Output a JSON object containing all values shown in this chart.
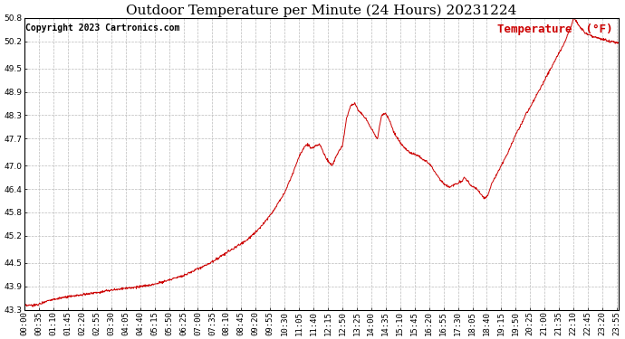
{
  "title": "Outdoor Temperature per Minute (24 Hours) 20231224",
  "copyright_text": "Copyright 2023 Cartronics.com",
  "legend_label": "Temperature  (°F)",
  "line_color": "#cc0000",
  "background_color": "#ffffff",
  "grid_color": "#bbbbbb",
  "grid_style": "--",
  "ylim": [
    43.3,
    50.8
  ],
  "yticks": [
    43.3,
    43.9,
    44.5,
    45.2,
    45.8,
    46.4,
    47.0,
    47.7,
    48.3,
    48.9,
    49.5,
    50.2,
    50.8
  ],
  "title_fontsize": 11,
  "copyright_fontsize": 7,
  "tick_fontsize": 6.5,
  "legend_fontsize": 9,
  "keypoints": [
    [
      0,
      43.4
    ],
    [
      30,
      43.42
    ],
    [
      60,
      43.55
    ],
    [
      90,
      43.6
    ],
    [
      120,
      43.65
    ],
    [
      150,
      43.7
    ],
    [
      180,
      43.75
    ],
    [
      210,
      43.8
    ],
    [
      240,
      43.85
    ],
    [
      270,
      43.88
    ],
    [
      300,
      43.92
    ],
    [
      330,
      44.0
    ],
    [
      360,
      44.1
    ],
    [
      390,
      44.2
    ],
    [
      420,
      44.35
    ],
    [
      450,
      44.5
    ],
    [
      480,
      44.7
    ],
    [
      510,
      44.9
    ],
    [
      540,
      45.1
    ],
    [
      570,
      45.4
    ],
    [
      600,
      45.8
    ],
    [
      630,
      46.3
    ],
    [
      650,
      46.8
    ],
    [
      660,
      47.1
    ],
    [
      670,
      47.35
    ],
    [
      680,
      47.5
    ],
    [
      685,
      47.55
    ],
    [
      695,
      47.45
    ],
    [
      705,
      47.5
    ],
    [
      715,
      47.55
    ],
    [
      720,
      47.45
    ],
    [
      730,
      47.2
    ],
    [
      745,
      47.0
    ],
    [
      760,
      47.35
    ],
    [
      770,
      47.5
    ],
    [
      780,
      48.2
    ],
    [
      790,
      48.55
    ],
    [
      800,
      48.6
    ],
    [
      810,
      48.4
    ],
    [
      820,
      48.3
    ],
    [
      830,
      48.15
    ],
    [
      840,
      47.95
    ],
    [
      855,
      47.7
    ],
    [
      865,
      48.3
    ],
    [
      875,
      48.35
    ],
    [
      885,
      48.15
    ],
    [
      895,
      47.85
    ],
    [
      910,
      47.6
    ],
    [
      925,
      47.4
    ],
    [
      940,
      47.3
    ],
    [
      955,
      47.25
    ],
    [
      965,
      47.15
    ],
    [
      975,
      47.1
    ],
    [
      985,
      47.0
    ],
    [
      990,
      46.9
    ],
    [
      1000,
      46.75
    ],
    [
      1010,
      46.6
    ],
    [
      1020,
      46.5
    ],
    [
      1030,
      46.45
    ],
    [
      1040,
      46.5
    ],
    [
      1050,
      46.55
    ],
    [
      1060,
      46.6
    ],
    [
      1065,
      46.7
    ],
    [
      1070,
      46.65
    ],
    [
      1075,
      46.6
    ],
    [
      1080,
      46.5
    ],
    [
      1090,
      46.45
    ],
    [
      1095,
      46.4
    ],
    [
      1100,
      46.35
    ],
    [
      1110,
      46.2
    ],
    [
      1115,
      46.15
    ],
    [
      1120,
      46.2
    ],
    [
      1125,
      46.3
    ],
    [
      1130,
      46.5
    ],
    [
      1140,
      46.7
    ],
    [
      1150,
      46.9
    ],
    [
      1160,
      47.1
    ],
    [
      1170,
      47.3
    ],
    [
      1180,
      47.55
    ],
    [
      1190,
      47.8
    ],
    [
      1200,
      48.0
    ],
    [
      1210,
      48.2
    ],
    [
      1215,
      48.35
    ],
    [
      1220,
      48.4
    ],
    [
      1225,
      48.5
    ],
    [
      1230,
      48.6
    ],
    [
      1240,
      48.8
    ],
    [
      1250,
      49.0
    ],
    [
      1260,
      49.2
    ],
    [
      1270,
      49.4
    ],
    [
      1280,
      49.6
    ],
    [
      1290,
      49.8
    ],
    [
      1300,
      50.0
    ],
    [
      1310,
      50.2
    ],
    [
      1315,
      50.35
    ],
    [
      1320,
      50.5
    ],
    [
      1325,
      50.6
    ],
    [
      1328,
      50.7
    ],
    [
      1330,
      50.8
    ],
    [
      1335,
      50.75
    ],
    [
      1340,
      50.65
    ],
    [
      1350,
      50.5
    ],
    [
      1360,
      50.4
    ],
    [
      1370,
      50.35
    ],
    [
      1380,
      50.3
    ],
    [
      1390,
      50.28
    ],
    [
      1400,
      50.25
    ],
    [
      1410,
      50.22
    ],
    [
      1420,
      50.2
    ],
    [
      1430,
      50.18
    ],
    [
      1439,
      50.15
    ]
  ]
}
